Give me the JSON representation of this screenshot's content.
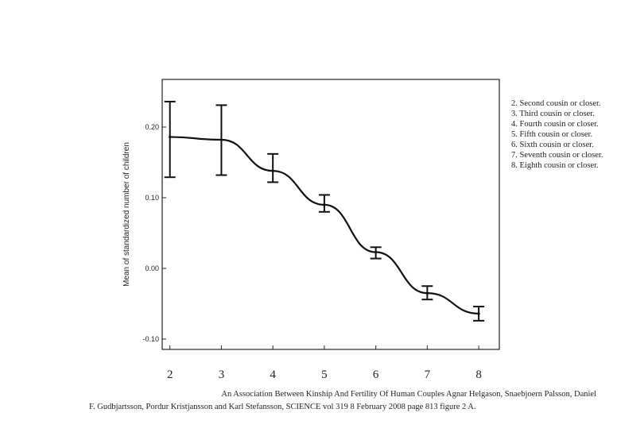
{
  "chart_data": {
    "type": "line",
    "title": "",
    "xlabel": "",
    "ylabel": "Mean of standardized number of children",
    "categories": [
      "2",
      "3",
      "4",
      "5",
      "6",
      "7",
      "8"
    ],
    "x": [
      2,
      3,
      4,
      5,
      6,
      7,
      8
    ],
    "series": [
      {
        "values": [
          0.186,
          0.182,
          0.138,
          0.09,
          0.023,
          -0.035,
          -0.064
        ],
        "error_low": [
          0.129,
          0.132,
          0.122,
          0.08,
          0.014,
          -0.044,
          -0.074
        ],
        "error_high": [
          0.236,
          0.231,
          0.162,
          0.104,
          0.03,
          -0.025,
          -0.054
        ]
      }
    ],
    "yticks": [
      {
        "value": 0.2,
        "label": "0.20"
      },
      {
        "value": 0.1,
        "label": "0.10"
      },
      {
        "value": 0.0,
        "label": "0.00"
      },
      {
        "value": -0.1,
        "label": "-0.10"
      }
    ],
    "xticks": [
      "2",
      "3",
      "4",
      "5",
      "6",
      "7",
      "8"
    ],
    "xlim": [
      1.85,
      8.4
    ],
    "ylim": [
      -0.1,
      0.2
    ],
    "grid": false,
    "legend_position": "right"
  },
  "legend": {
    "items": [
      "2. Second cousin or closer.",
      "3. Third cousin or closer.",
      "4. Fourth cousin or closer.",
      "5. Fifth cousin or closer.",
      "6. Sixth cousin or closer.",
      "7. Seventh cousin or closer.",
      "8. Eighth cousin or closer."
    ]
  },
  "caption": {
    "line1": "An Association Between Kinship And Fertility Of Human Couples Agnar Helgason, Snaebjoern Palsson, Daniel",
    "line2": "F. Gudbjartsson, Pordur Kristjansson and Karl Stefansson, SCIENCE vol 319 8 February 2008 page 813 figure 2 A."
  },
  "colors": {
    "line": "#111111",
    "axis": "#222222",
    "text": "#222222",
    "background": "#ffffff"
  }
}
